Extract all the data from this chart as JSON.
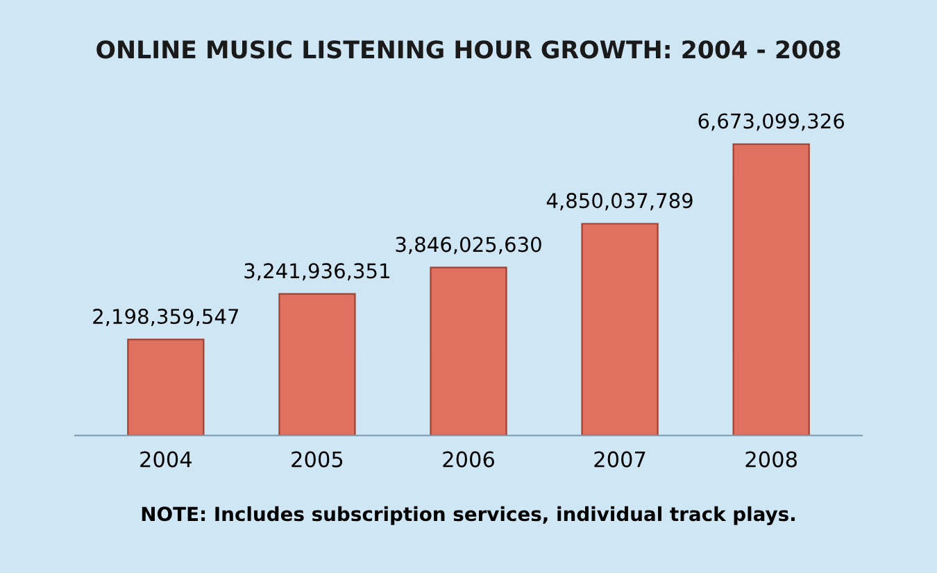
{
  "chart_data": {
    "type": "bar",
    "title": "ONLINE MUSIC LISTENING HOUR GROWTH: 2004 - 2008",
    "categories": [
      "2004",
      "2005",
      "2006",
      "2007",
      "2008"
    ],
    "values": [
      2198359547,
      3241936351,
      3846025630,
      4850037789,
      6673099326
    ],
    "color": "#e07060",
    "value_labels": [
      "2,198,359,547",
      "3,241,936,351",
      "3,846,025,630",
      "4,850,037,789",
      "6,673,099,326"
    ],
    "annotations": [
      "NOTE: Includes subscription services, individual track plays."
    ]
  }
}
